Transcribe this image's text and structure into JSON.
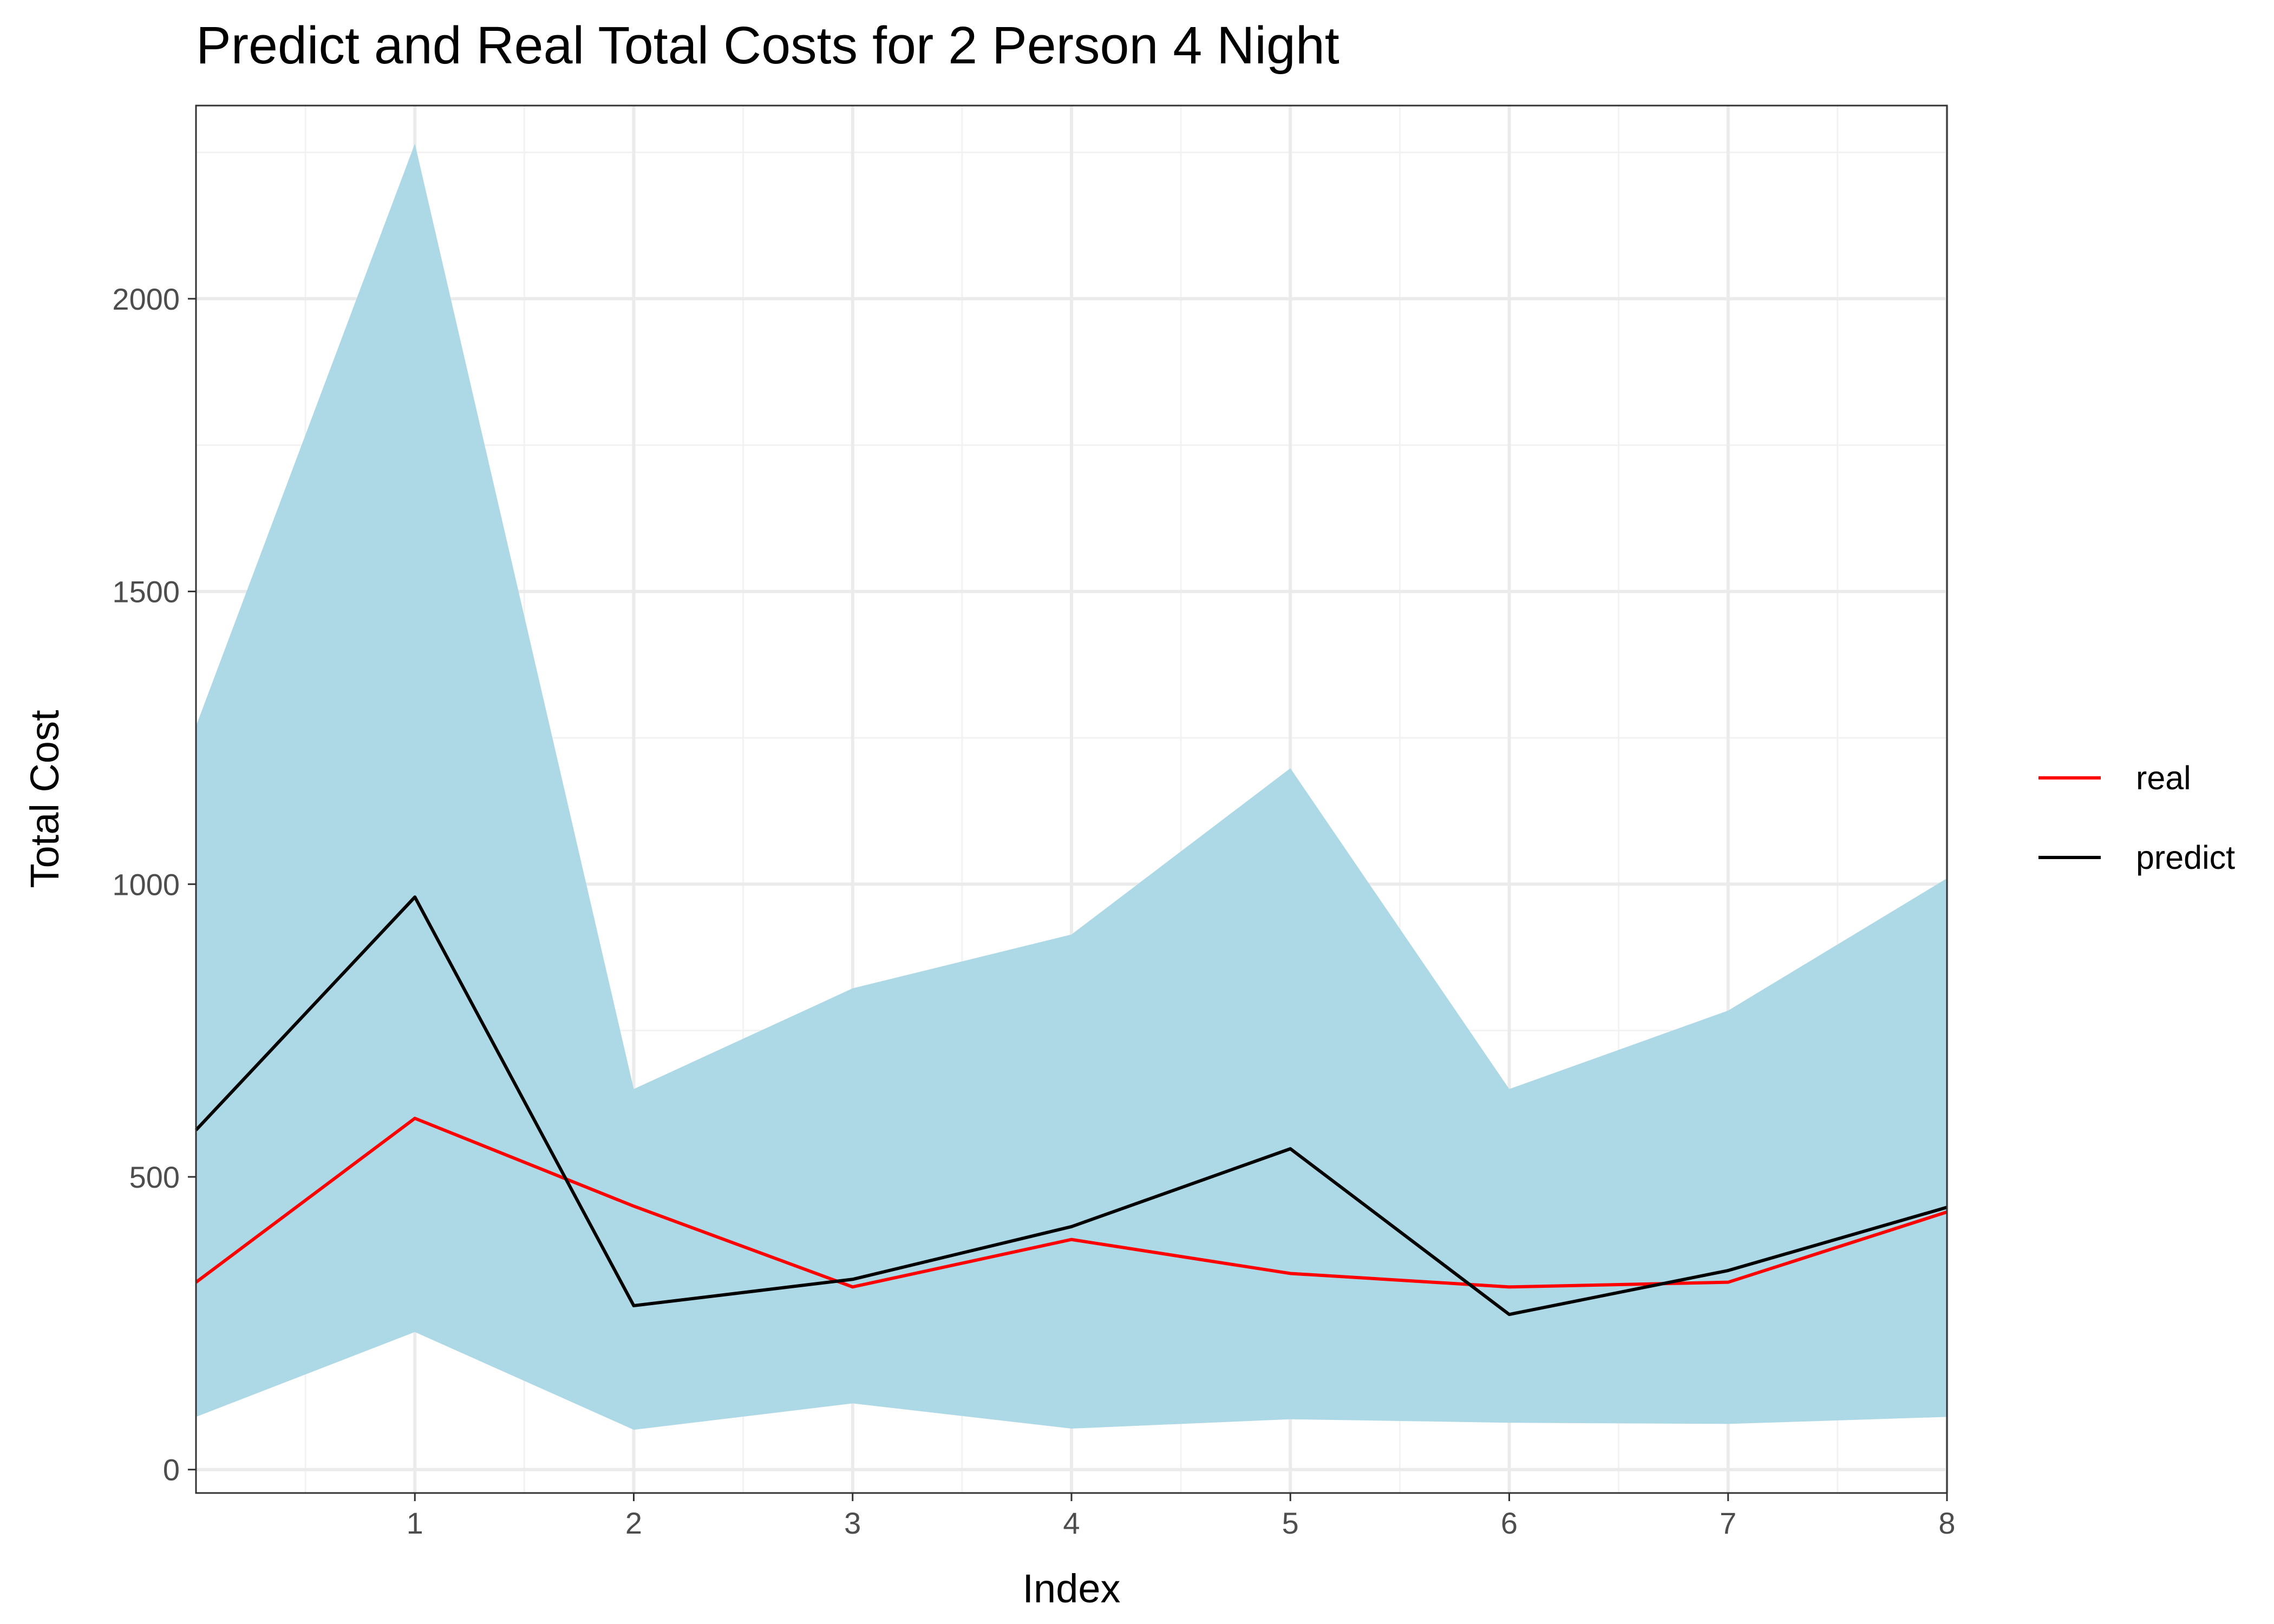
{
  "chart_data": {
    "type": "line",
    "title": "Predict and Real Total Costs for 2 Person 4 Night",
    "xlabel": "Index",
    "ylabel": "Total Cost",
    "x": [
      0,
      1,
      2,
      3,
      4,
      5,
      6,
      7,
      8
    ],
    "xticks": [
      1,
      2,
      3,
      4,
      5,
      6,
      7,
      8
    ],
    "yticks": [
      0,
      500,
      1000,
      1500,
      2000
    ],
    "xlim": [
      0,
      8
    ],
    "ylim": [
      -40,
      2330
    ],
    "grid": true,
    "legend_position": "right",
    "band": {
      "lower": [
        90,
        235,
        68,
        113,
        70,
        86,
        80,
        78,
        90
      ],
      "upper": [
        1270,
        2265,
        650,
        822,
        914,
        1198,
        650,
        784,
        1010
      ],
      "color": "#add8e6"
    },
    "series": [
      {
        "name": "real",
        "color": "#ff0000",
        "values": [
          320,
          600,
          450,
          312,
          393,
          335,
          312,
          320,
          440
        ]
      },
      {
        "name": "predict",
        "color": "#000000",
        "values": [
          580,
          978,
          280,
          325,
          415,
          548,
          265,
          340,
          448
        ]
      }
    ]
  }
}
